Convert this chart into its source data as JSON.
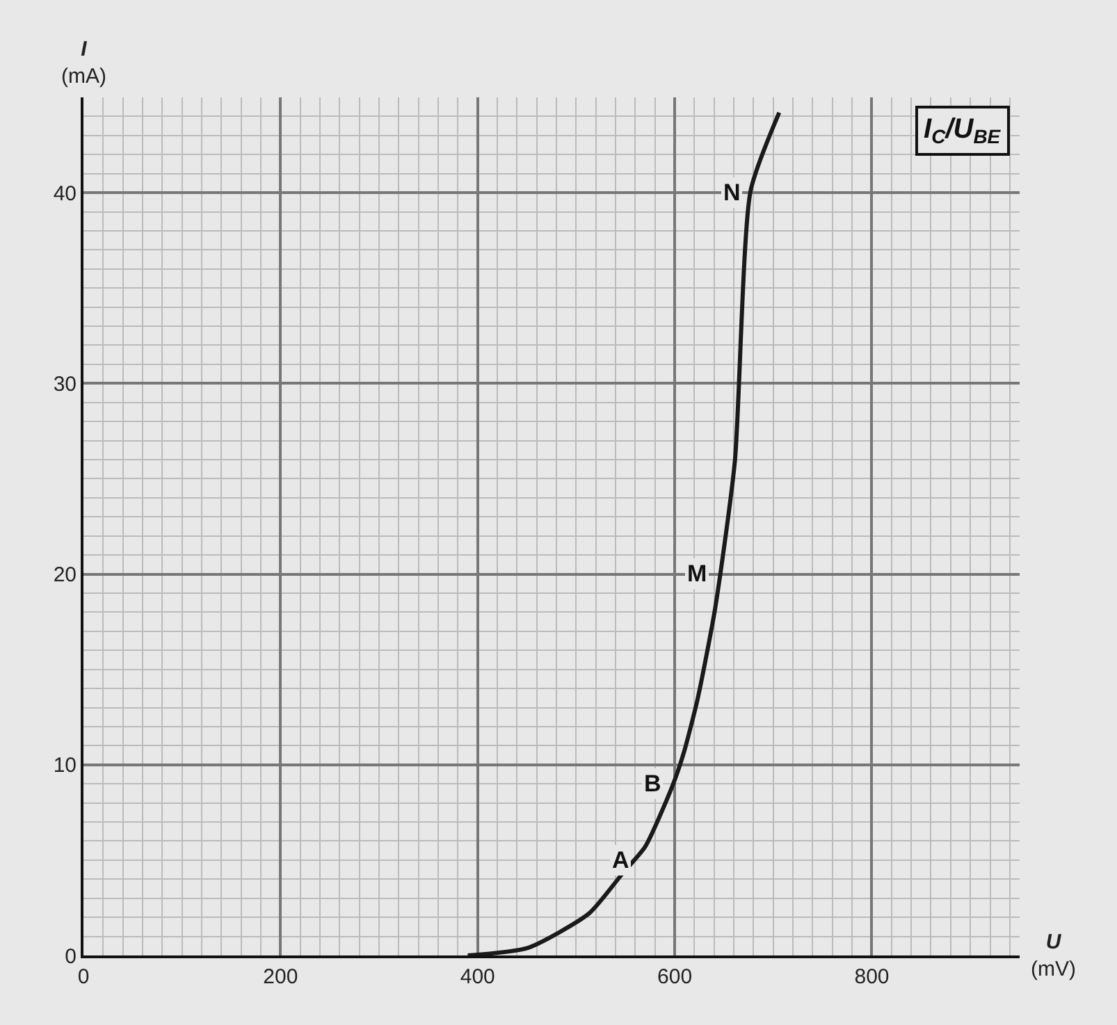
{
  "chart_data": {
    "type": "line",
    "title": "I$_{C}$/U$_{BE}$",
    "xlabel": "U (mV)",
    "ylabel": "I (mA)",
    "x": [
      390,
      451,
      513,
      547,
      570,
      597,
      609,
      623,
      641,
      661,
      677,
      706
    ],
    "series": [
      {
        "color": "#1a1a1a",
        "values": [
          0,
          0.4,
          2.2,
          4.3,
          5.7,
          8.8,
          10.6,
          13.4,
          18.2,
          25.9,
          40.1,
          44.2
        ]
      }
    ],
    "xlim": [
      0,
      950
    ],
    "ylim": [
      0,
      45
    ],
    "xticks": [
      0,
      200,
      400,
      600,
      800
    ],
    "yticks": [
      0,
      10,
      20,
      30,
      40
    ],
    "grid": true,
    "legend": false,
    "marker": "none",
    "line_style": "solid",
    "annotations": [
      {
        "text": "A",
        "x": 565,
        "y": 5
      },
      {
        "text": "B",
        "x": 597,
        "y": 9
      },
      {
        "text": "M",
        "x": 643,
        "y": 20
      },
      {
        "text": "N",
        "x": 677,
        "y": 40
      }
    ]
  }
}
